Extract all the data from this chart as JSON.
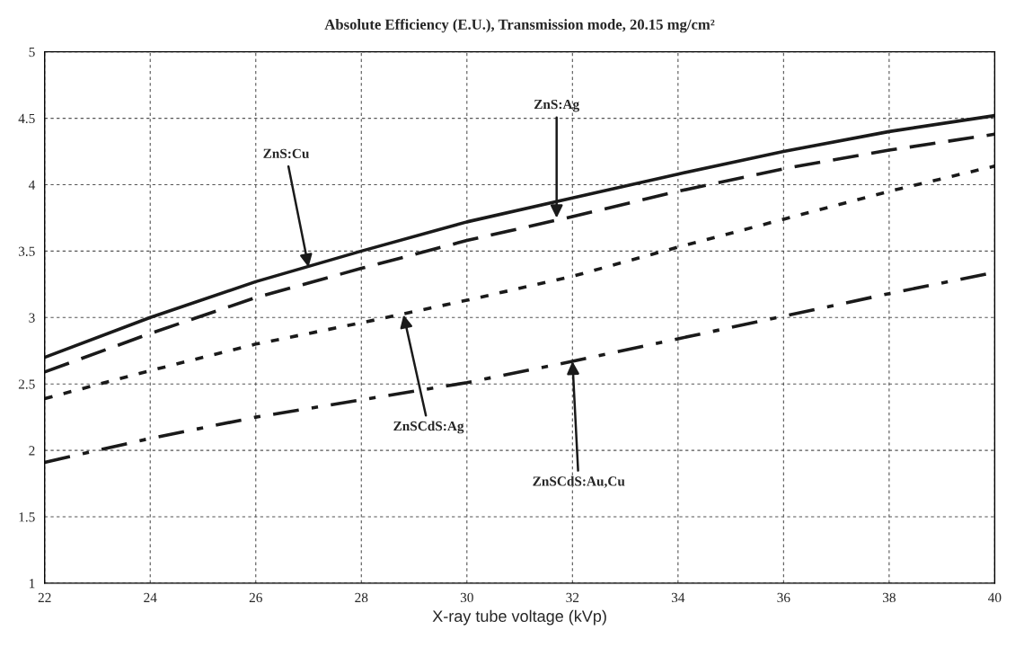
{
  "chart_data": {
    "type": "line",
    "title": "Absolute Efficiency (E.U.), Transmission mode, 20.15 mg/cm²",
    "xlabel": "X-ray tube voltage (kVp)",
    "x": [
      22,
      24,
      26,
      28,
      30,
      32,
      34,
      36,
      38,
      40
    ],
    "series": [
      {
        "color": "#1a1a1a",
        "line_style": "solid",
        "values": [
          2.7,
          3.0,
          3.27,
          3.5,
          3.72,
          3.9,
          4.08,
          4.25,
          4.4,
          4.52
        ]
      },
      {
        "color": "#1a1a1a",
        "line_style": "dashed",
        "values": [
          2.59,
          2.88,
          3.15,
          3.37,
          3.58,
          3.76,
          3.95,
          4.12,
          4.26,
          4.38
        ]
      },
      {
        "color": "#1a1a1a",
        "line_style": "dotted",
        "values": [
          2.39,
          2.6,
          2.8,
          2.96,
          3.13,
          3.31,
          3.53,
          3.74,
          3.95,
          4.14
        ]
      },
      {
        "color": "#1a1a1a",
        "line_style": "dashdot",
        "values": [
          1.91,
          2.09,
          2.25,
          2.38,
          2.51,
          2.67,
          2.84,
          3.01,
          3.18,
          3.34
        ]
      }
    ],
    "annotations": [
      {
        "text": "ZnS:Cu",
        "x": 27,
        "y": 3.38
      },
      {
        "text": "ZnS:Ag",
        "x": 31.7,
        "y": 3.75
      },
      {
        "text": "ZnSCdS:Ag",
        "x": 28.8,
        "y": 3.02
      },
      {
        "text": "ZnSCdS:Au,Cu",
        "x": 32,
        "y": 2.67
      }
    ],
    "xlim": [
      22,
      40
    ],
    "xticks": [
      22,
      24,
      26,
      28,
      30,
      32,
      34,
      36,
      38,
      40
    ],
    "ylim": [
      1,
      5
    ],
    "yticks": [
      1,
      1.5,
      2,
      2.5,
      3,
      3.5,
      4,
      4.5,
      5
    ],
    "grid": true,
    "marker": "none",
    "legend": false
  }
}
